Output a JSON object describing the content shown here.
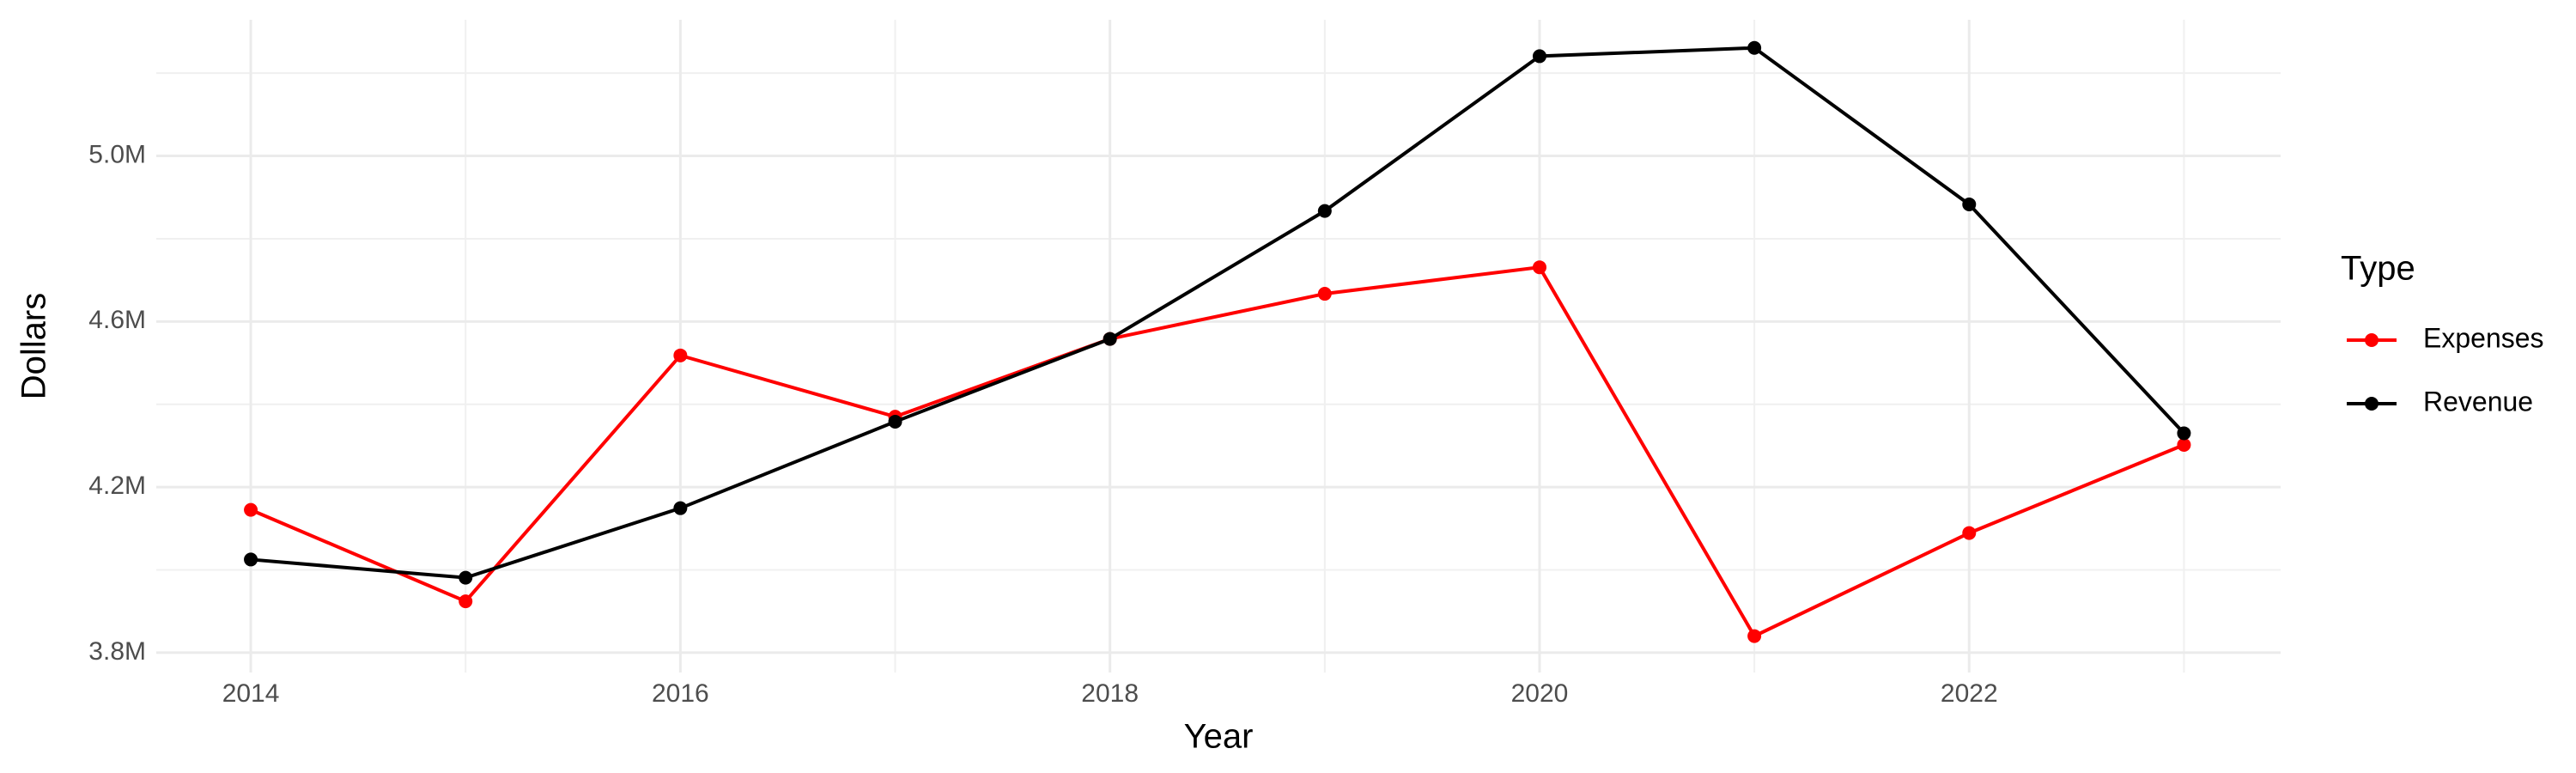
{
  "chart_data": {
    "type": "line",
    "x_label": "Year",
    "y_label": "Dollars",
    "x": [
      2014,
      2015,
      2016,
      2017,
      2018,
      2019,
      2020,
      2021,
      2022,
      2023
    ],
    "series": [
      {
        "name": "Expenses",
        "color": "#ff0000",
        "values": [
          4145000,
          3924000,
          4518000,
          4370000,
          4558000,
          4667000,
          4731000,
          3840000,
          4089000,
          4302000
        ]
      },
      {
        "name": "Revenue",
        "color": "#000000",
        "values": [
          4025000,
          3981000,
          4149000,
          4358000,
          4558000,
          4867000,
          5241000,
          5261000,
          4883000,
          4330000
        ]
      }
    ],
    "xlim": [
      2013.56,
      2023.45
    ],
    "xticks": [
      2014,
      2016,
      2018,
      2020,
      2022
    ],
    "ylim": [
      3752000,
      5329000
    ],
    "yticks": [
      {
        "value": 3800000,
        "label": "3.8M"
      },
      {
        "value": 4200000,
        "label": "4.2M"
      },
      {
        "value": 4600000,
        "label": "4.6M"
      },
      {
        "value": 5000000,
        "label": "5.0M"
      }
    ],
    "grid": true,
    "legend_title": "Type",
    "legend_position": "right"
  }
}
